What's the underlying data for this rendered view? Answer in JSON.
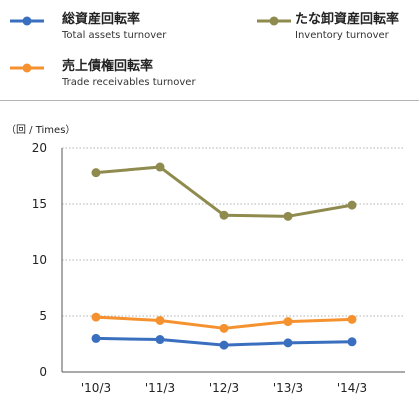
{
  "legend": {
    "items": [
      {
        "label_ja": "総資産回転率",
        "label_en": "Total assets turnover",
        "color": "#3a6fbf"
      },
      {
        "label_ja": "たな卸資産回転率",
        "label_en": "Inventory turnover",
        "color": "#8f8a4e"
      },
      {
        "label_ja": "売上債権回転率",
        "label_en": "Trade receivables turnover",
        "color": "#f5922f"
      }
    ]
  },
  "unit_label": "（回 / Times）",
  "chart_data": {
    "type": "line",
    "categories": [
      "'10/3",
      "'11/3",
      "'12/3",
      "'13/3",
      "'14/3"
    ],
    "series": [
      {
        "name": "総資産回転率 Total assets turnover",
        "color": "#3a6fbf",
        "values": [
          3.0,
          2.9,
          2.4,
          2.6,
          2.7
        ]
      },
      {
        "name": "たな卸資産回転率 Inventory turnover",
        "color": "#8f8a4e",
        "values": [
          17.8,
          18.3,
          14.0,
          13.9,
          14.9
        ]
      },
      {
        "name": "売上債権回転率 Trade receivables turnover",
        "color": "#f5922f",
        "values": [
          4.9,
          4.6,
          3.9,
          4.5,
          4.7
        ]
      }
    ],
    "yticks": [
      0,
      5,
      10,
      15,
      20
    ],
    "ylim": [
      0,
      20
    ],
    "grid": true,
    "legend_position": "top"
  }
}
